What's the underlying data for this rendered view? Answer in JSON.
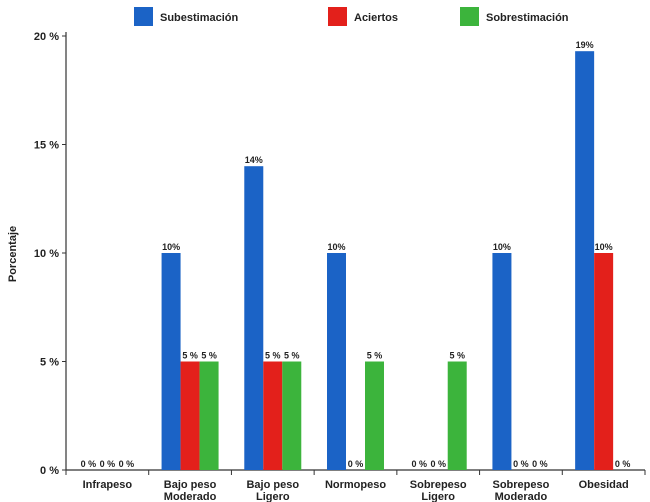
{
  "chart_data": {
    "type": "bar",
    "categories": [
      [
        "Infrapeso"
      ],
      [
        "Bajo peso",
        "Moderado"
      ],
      [
        "Bajo peso",
        "Ligero"
      ],
      [
        "Normopeso"
      ],
      [
        "Sobrepeso",
        "Ligero"
      ],
      [
        "Sobrepeso",
        "Moderado"
      ],
      [
        "Obesidad"
      ]
    ],
    "series": [
      {
        "name": "Subestimación",
        "color": "#1b63c6",
        "values": [
          0,
          10,
          14,
          10,
          0,
          10,
          19.3
        ],
        "labels": [
          "0 %",
          "10%",
          "14%",
          "10%",
          "0 %",
          "10%",
          "19%"
        ]
      },
      {
        "name": "Aciertos",
        "color": "#e3201b",
        "values": [
          0,
          5,
          5,
          0,
          0,
          0,
          10
        ],
        "labels": [
          "0 %",
          "5 %",
          "5 %",
          "0 %",
          "0 %",
          "0 %",
          "10%"
        ]
      },
      {
        "name": "Sobrestimación",
        "color": "#3cb43c",
        "values": [
          0,
          5,
          5,
          5,
          5,
          0,
          0
        ],
        "labels": [
          "0 %",
          "5 %",
          "5 %",
          "5 %",
          "5 %",
          "0 %",
          "0 %"
        ]
      }
    ],
    "ylabel": "Porcentaje",
    "xlabel": "",
    "ylim": [
      0,
      20
    ],
    "yticks": [
      0,
      5,
      10,
      15,
      20
    ],
    "ytick_labels": [
      "0 %",
      "5 %",
      "10 %",
      "15 %",
      "20 %"
    ],
    "legend_position": "top",
    "grid": false
  }
}
